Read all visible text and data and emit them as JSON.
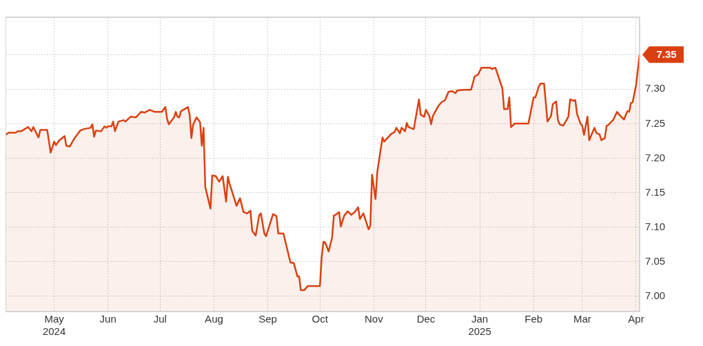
{
  "chart_data": {
    "type": "area",
    "xlim": [
      "2024-04-03",
      "2025-04-03"
    ],
    "ylim": [
      6.978,
      7.404
    ],
    "xticks": [
      {
        "value": "2024-05-01",
        "label": "May\n2024"
      },
      {
        "value": "2024-06-01",
        "label": "Jun"
      },
      {
        "value": "2024-07-01",
        "label": "Jul"
      },
      {
        "value": "2024-08-01",
        "label": "Aug"
      },
      {
        "value": "2024-09-01",
        "label": "Sep"
      },
      {
        "value": "2024-10-01",
        "label": "Oct"
      },
      {
        "value": "2024-11-01",
        "label": "Nov"
      },
      {
        "value": "2024-12-01",
        "label": "Dec"
      },
      {
        "value": "2025-01-01",
        "label": "Jan\n2025"
      },
      {
        "value": "2025-02-01",
        "label": "Feb"
      },
      {
        "value": "2025-03-01",
        "label": "Mar"
      },
      {
        "value": "2025-04-01",
        "label": "Apr"
      }
    ],
    "yticks": [
      {
        "value": 7,
        "label": "7.00"
      },
      {
        "value": 7.05,
        "label": "7.05"
      },
      {
        "value": 7.1,
        "label": "7.10"
      },
      {
        "value": 7.15,
        "label": "7.15"
      },
      {
        "value": 7.2,
        "label": "7.20"
      },
      {
        "value": 7.25,
        "label": "7.25"
      },
      {
        "value": 7.3,
        "label": "7.30"
      },
      {
        "value": 7.35,
        "label": null
      }
    ],
    "grid": true,
    "legend": false,
    "annotations": [
      {
        "text": "7.35",
        "x": "2025-04-03",
        "y": 7.35
      }
    ],
    "series": [
      {
        "color": "#d9400f",
        "x": [
          "2024-04-03",
          "2024-04-05",
          "2024-04-09",
          "2024-04-10",
          "2024-04-12",
          "2024-04-16",
          "2024-04-18",
          "2024-04-19",
          "2024-04-22",
          "2024-04-23",
          "2024-04-27",
          "2024-04-29",
          "2024-05-01",
          "2024-05-02",
          "2024-05-04",
          "2024-05-07",
          "2024-05-08",
          "2024-05-10",
          "2024-05-13",
          "2024-05-16",
          "2024-05-18",
          "2024-05-22",
          "2024-05-23",
          "2024-05-24",
          "2024-05-25",
          "2024-05-28",
          "2024-05-30",
          "2024-05-31",
          "2024-06-01",
          "2024-06-03",
          "2024-06-04",
          "2024-06-05",
          "2024-06-07",
          "2024-06-10",
          "2024-06-11",
          "2024-06-14",
          "2024-06-17",
          "2024-06-20",
          "2024-06-22",
          "2024-06-25",
          "2024-06-28",
          "2024-07-02",
          "2024-07-04",
          "2024-07-05",
          "2024-07-06",
          "2024-07-09",
          "2024-07-10",
          "2024-07-11",
          "2024-07-12",
          "2024-07-13",
          "2024-07-17",
          "2024-07-18",
          "2024-07-19",
          "2024-07-20",
          "2024-07-22",
          "2024-07-24",
          "2024-07-25",
          "2024-07-26",
          "2024-07-27",
          "2024-07-30",
          "2024-07-31",
          "2024-08-02",
          "2024-08-04",
          "2024-08-06",
          "2024-08-08",
          "2024-08-09",
          "2024-08-10",
          "2024-08-14",
          "2024-08-16",
          "2024-08-18",
          "2024-08-20",
          "2024-08-22",
          "2024-08-23",
          "2024-08-25",
          "2024-08-27",
          "2024-08-28",
          "2024-08-30",
          "2024-08-31",
          "2024-09-04",
          "2024-09-06",
          "2024-09-07",
          "2024-09-10",
          "2024-09-14",
          "2024-09-16",
          "2024-09-18",
          "2024-09-19",
          "2024-09-20",
          "2024-09-22",
          "2024-09-24",
          "2024-10-01",
          "2024-10-02",
          "2024-10-03",
          "2024-10-04",
          "2024-10-06",
          "2024-10-08",
          "2024-10-09",
          "2024-10-10",
          "2024-10-12",
          "2024-10-13",
          "2024-10-15",
          "2024-10-17",
          "2024-10-19",
          "2024-10-21",
          "2024-10-23",
          "2024-10-24",
          "2024-10-26",
          "2024-10-29",
          "2024-10-30",
          "2024-10-31",
          "2024-11-02",
          "2024-11-03",
          "2024-11-06",
          "2024-11-07",
          "2024-11-11",
          "2024-11-13",
          "2024-11-14",
          "2024-11-16",
          "2024-11-17",
          "2024-11-19",
          "2024-11-20",
          "2024-11-21",
          "2024-11-24",
          "2024-11-27",
          "2024-11-28",
          "2024-11-30",
          "2024-12-01",
          "2024-12-03",
          "2024-12-04",
          "2024-12-05",
          "2024-12-08",
          "2024-12-10",
          "2024-12-12",
          "2024-12-14",
          "2024-12-16",
          "2024-12-18",
          "2024-12-19",
          "2024-12-23",
          "2024-12-27",
          "2024-12-29",
          "2024-12-31",
          "2025-01-02",
          "2025-01-07",
          "2025-01-08",
          "2025-01-10",
          "2025-01-14",
          "2025-01-15",
          "2025-01-17",
          "2025-01-18",
          "2025-01-19",
          "2025-01-21",
          "2025-01-29",
          "2025-02-01",
          "2025-02-02",
          "2025-02-04",
          "2025-02-05",
          "2025-02-07",
          "2025-02-09",
          "2025-02-11",
          "2025-02-12",
          "2025-02-14",
          "2025-02-15",
          "2025-02-16",
          "2025-02-18",
          "2025-02-21",
          "2025-02-22",
          "2025-02-24",
          "2025-02-25",
          "2025-02-26",
          "2025-02-28",
          "2025-03-01",
          "2025-03-02",
          "2025-03-04",
          "2025-03-05",
          "2025-03-08",
          "2025-03-09",
          "2025-03-11",
          "2025-03-12",
          "2025-03-14",
          "2025-03-15",
          "2025-03-16",
          "2025-03-19",
          "2025-03-21",
          "2025-03-23",
          "2025-03-25",
          "2025-03-27",
          "2025-03-28",
          "2025-03-29",
          "2025-03-30",
          "2025-04-01",
          "2025-04-03"
        ],
        "values": [
          7.234,
          7.237,
          7.237,
          7.239,
          7.239,
          7.245,
          7.239,
          7.245,
          7.23,
          7.241,
          7.241,
          7.208,
          7.224,
          7.219,
          7.226,
          7.232,
          7.218,
          7.217,
          7.23,
          7.24,
          7.242,
          7.244,
          7.249,
          7.231,
          7.24,
          7.239,
          7.246,
          7.244,
          7.246,
          7.246,
          7.253,
          7.239,
          7.253,
          7.255,
          7.253,
          7.26,
          7.259,
          7.267,
          7.266,
          7.27,
          7.267,
          7.267,
          7.274,
          7.257,
          7.249,
          7.259,
          7.267,
          7.26,
          7.259,
          7.268,
          7.274,
          7.263,
          7.229,
          7.249,
          7.259,
          7.252,
          7.218,
          7.244,
          7.158,
          7.127,
          7.175,
          7.174,
          7.166,
          7.174,
          7.137,
          7.173,
          7.163,
          7.131,
          7.142,
          7.122,
          7.12,
          7.124,
          7.095,
          7.088,
          7.117,
          7.12,
          7.091,
          7.087,
          7.119,
          7.116,
          7.091,
          7.091,
          7.049,
          7.048,
          7.029,
          7.029,
          7.009,
          7.009,
          7.015,
          7.015,
          7.057,
          7.079,
          7.078,
          7.065,
          7.085,
          7.117,
          7.118,
          7.122,
          7.101,
          7.117,
          7.123,
          7.118,
          7.122,
          7.129,
          7.112,
          7.12,
          7.097,
          7.102,
          7.176,
          7.141,
          7.18,
          7.23,
          7.224,
          7.235,
          7.238,
          7.244,
          7.236,
          7.244,
          7.239,
          7.251,
          7.245,
          7.242,
          7.285,
          7.263,
          7.26,
          7.27,
          7.261,
          7.249,
          7.261,
          7.275,
          7.281,
          7.284,
          7.296,
          7.297,
          7.294,
          7.298,
          7.299,
          7.299,
          7.318,
          7.321,
          7.331,
          7.331,
          7.329,
          7.331,
          7.301,
          7.271,
          7.271,
          7.288,
          7.245,
          7.25,
          7.25,
          7.288,
          7.288,
          7.304,
          7.308,
          7.308,
          7.253,
          7.261,
          7.278,
          7.282,
          7.255,
          7.249,
          7.247,
          7.26,
          7.285,
          7.283,
          7.284,
          7.264,
          7.25,
          7.247,
          7.234,
          7.26,
          7.226,
          7.244,
          7.237,
          7.234,
          7.226,
          7.229,
          7.247,
          7.248,
          7.256,
          7.267,
          7.261,
          7.256,
          7.268,
          7.267,
          7.28,
          7.281,
          7.306,
          7.35
        ]
      }
    ]
  }
}
